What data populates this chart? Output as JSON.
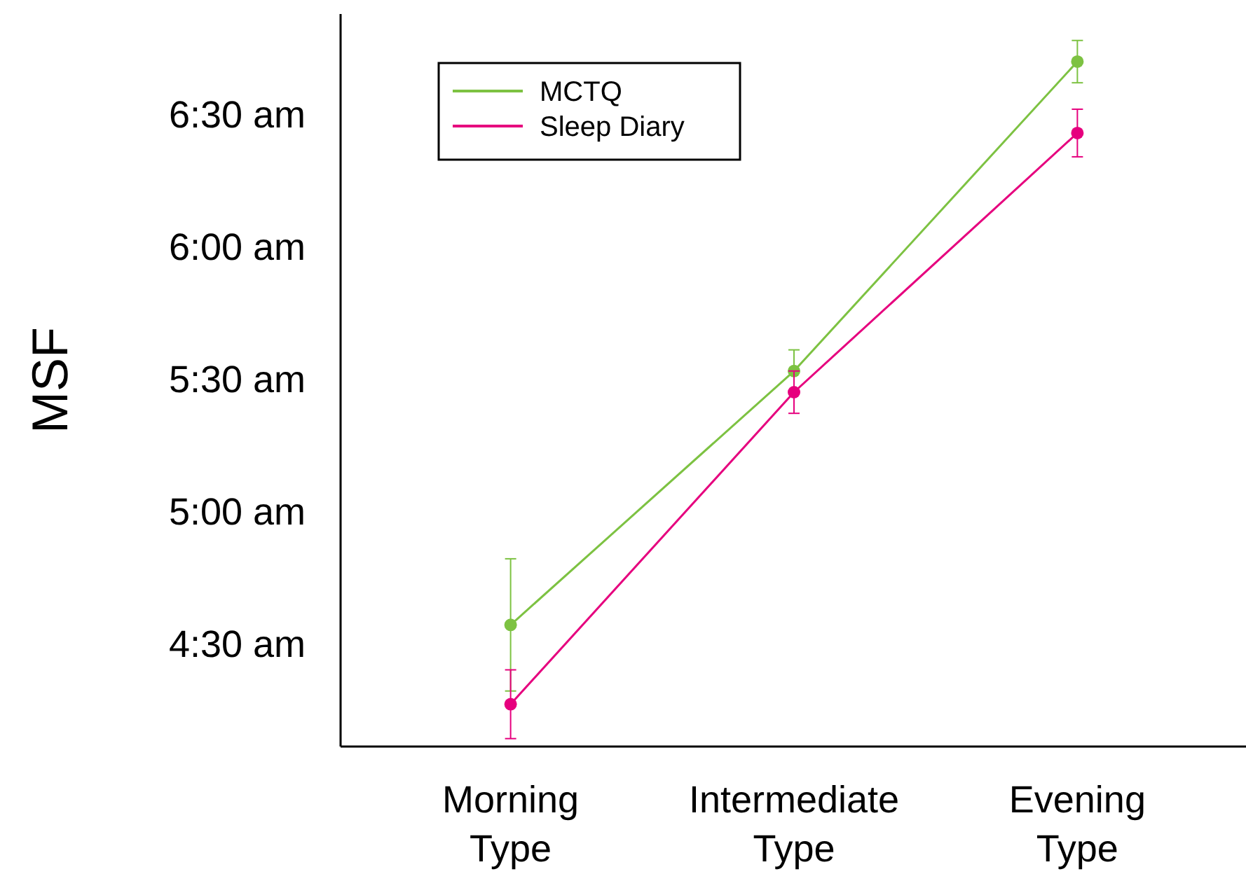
{
  "chart_data": {
    "type": "line",
    "ylabel": "MSF",
    "categories": [
      "Morning Type",
      "Intermediate Type",
      "Evening Type"
    ],
    "ylim": [
      4.11,
      6.88
    ],
    "yticks": [
      {
        "value": 4.5,
        "label": "4:30 am"
      },
      {
        "value": 5,
        "label": "5:00 am"
      },
      {
        "value": 5.5,
        "label": "5:30 am"
      },
      {
        "value": 6,
        "label": "6:00 am"
      },
      {
        "value": 6.5,
        "label": "6:30 am"
      }
    ],
    "legend": "top left",
    "marker": "circle",
    "line_style": "solid",
    "grid": false,
    "series": [
      {
        "name": "MCTQ",
        "color": "#7dc242",
        "values": [
          4.57,
          5.53,
          6.7
        ],
        "errors": [
          0.25,
          0.08,
          0.08
        ]
      },
      {
        "name": "Sleep Diary",
        "color": "#e6007e",
        "values": [
          4.27,
          5.45,
          6.43
        ],
        "errors": [
          0.13,
          0.08,
          0.09
        ]
      }
    ]
  }
}
